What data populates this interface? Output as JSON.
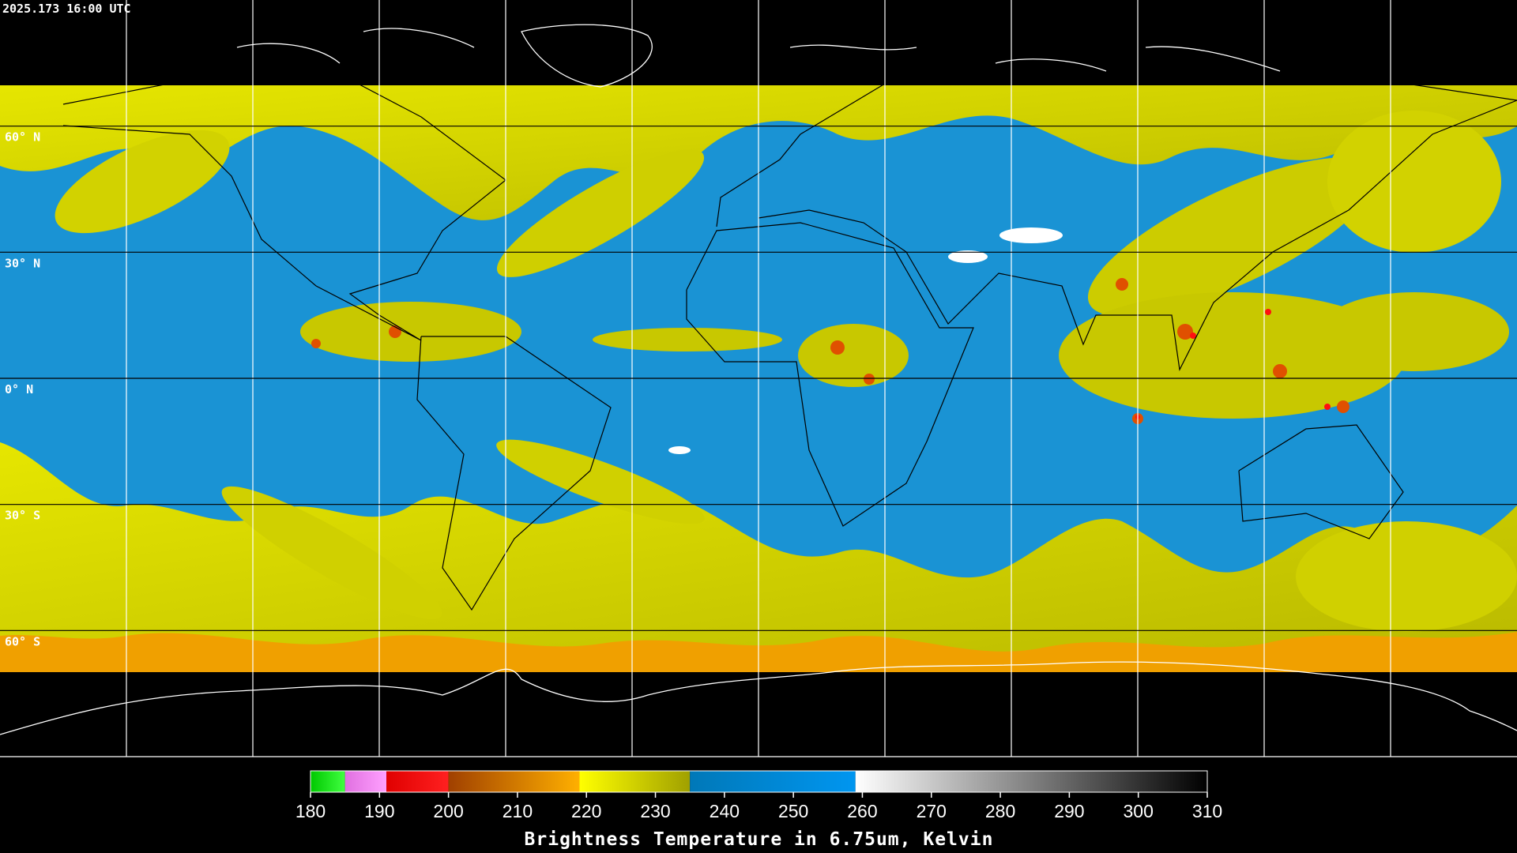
{
  "header": {
    "timestamp": "2025.173 16:00 UTC"
  },
  "map": {
    "lat_range": [
      90,
      -90
    ],
    "latitudes": [
      {
        "value": 60,
        "label": "60° N"
      },
      {
        "value": 30,
        "label": "30° N"
      },
      {
        "value": 0,
        "label": "0° N"
      },
      {
        "value": -30,
        "label": "30° S"
      },
      {
        "value": -60,
        "label": "60° S"
      }
    ]
  },
  "colorbar": {
    "title": "Brightness Temperature in 6.75um, Kelvin",
    "range": [
      180,
      310
    ],
    "ticks": [
      180,
      190,
      200,
      210,
      220,
      230,
      240,
      250,
      260,
      270,
      280,
      290,
      300,
      310
    ],
    "segments": [
      {
        "from": 180,
        "to": 185,
        "colors": [
          "#00c800",
          "#40ff40"
        ]
      },
      {
        "from": 185,
        "to": 191,
        "colors": [
          "#e070e0",
          "#ffa0ff"
        ]
      },
      {
        "from": 191,
        "to": 200,
        "colors": [
          "#e00000",
          "#ff2020"
        ]
      },
      {
        "from": 200,
        "to": 219,
        "colors": [
          "#a04000",
          "#ffb000"
        ]
      },
      {
        "from": 219,
        "to": 235,
        "colors": [
          "#ffff00",
          "#a0a000"
        ]
      },
      {
        "from": 235,
        "to": 259,
        "colors": [
          "#0078b8",
          "#0096f0"
        ]
      },
      {
        "from": 259,
        "to": 310,
        "colors": [
          "#ffffff",
          "#000000"
        ]
      }
    ]
  }
}
